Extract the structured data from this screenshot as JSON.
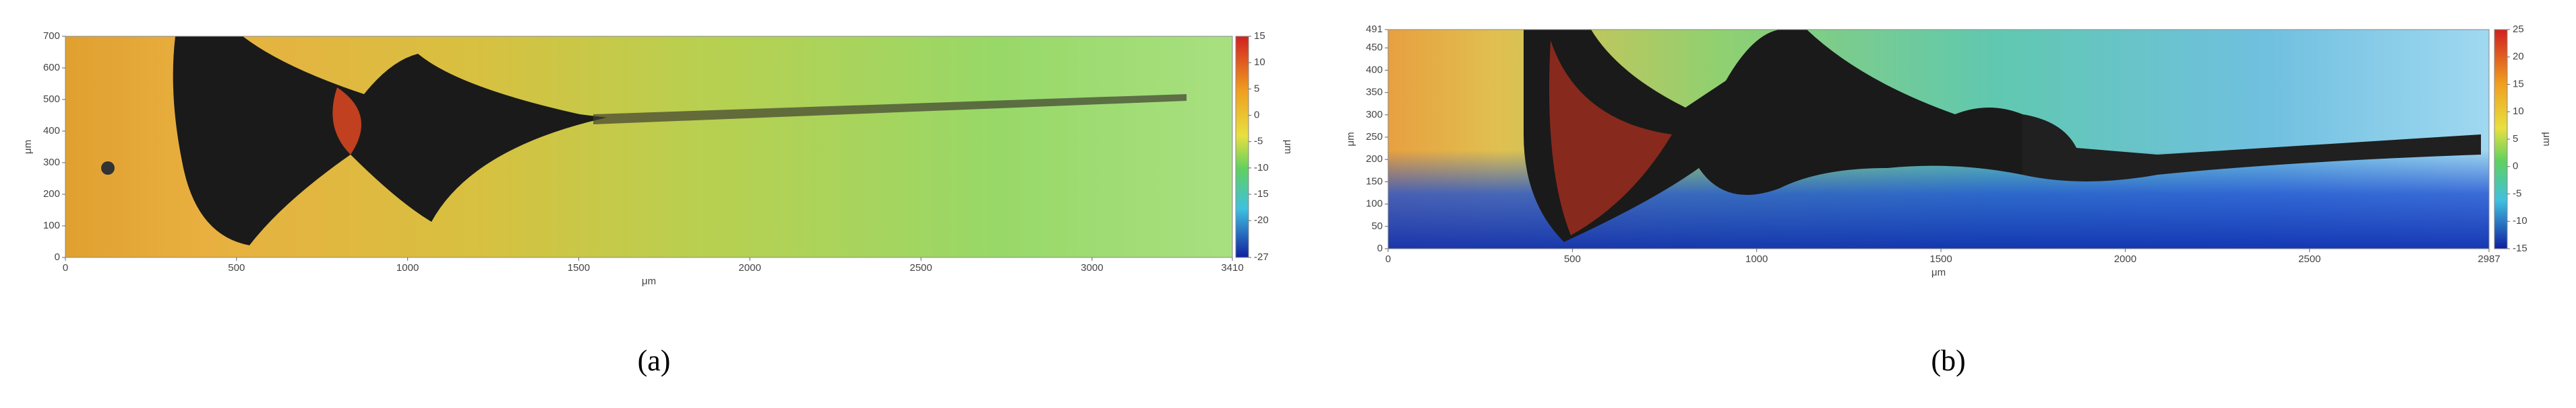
{
  "chart_data": [
    {
      "type": "heatmap",
      "caption": "(a)",
      "xlabel": "μm",
      "ylabel": "μm",
      "colorbar_label": "μm",
      "xlim": [
        0,
        3410
      ],
      "xticks": [
        0,
        500,
        1000,
        1500,
        2000,
        2500,
        3000,
        3410
      ],
      "ylim": [
        0,
        700
      ],
      "yticks": [
        0,
        100,
        200,
        300,
        400,
        500,
        600,
        700
      ],
      "clim": [
        -27,
        15
      ],
      "cticks": [
        15,
        10,
        5,
        0,
        -5,
        -10,
        -15,
        -20,
        -27
      ]
    },
    {
      "type": "heatmap",
      "caption": "(b)",
      "xlabel": "μm",
      "ylabel": "μm",
      "colorbar_label": "μm",
      "xlim": [
        0,
        2987
      ],
      "xticks": [
        0,
        500,
        1000,
        1500,
        2000,
        2500,
        2987
      ],
      "ylim": [
        0,
        491
      ],
      "yticks": [
        0,
        50,
        100,
        150,
        200,
        250,
        300,
        350,
        400,
        450,
        491
      ],
      "clim": [
        -15,
        25
      ],
      "cticks": [
        25,
        20,
        15,
        10,
        5,
        0,
        -5,
        -10,
        -15
      ]
    }
  ]
}
